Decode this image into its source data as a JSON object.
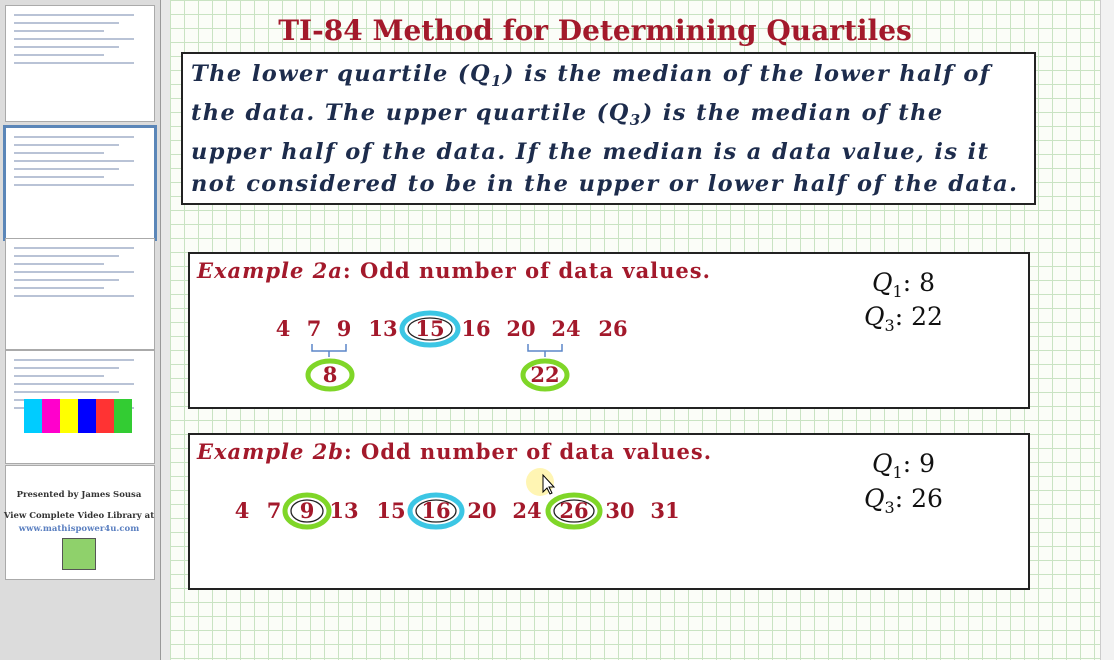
{
  "title": "TI-84 Method for Determining Quartiles",
  "definition": [
    "The lower quartile (Q",
    "1",
    ") is the median of the lower half of the data.  The upper quartile (Q",
    "3",
    ") is the median of the upper half of the data.  If the median is a data value, is it not considered to be in the upper or lower half of the data."
  ],
  "examples": [
    {
      "label": "Example 2a",
      "description": ":  Odd number of data values.",
      "data": [
        4,
        7,
        9,
        13,
        15,
        16,
        20,
        24,
        26
      ],
      "half_medians": [
        8,
        22
      ],
      "q1": {
        "symbol": "Q",
        "sub": "1",
        "sep": ":",
        "value": 8
      },
      "q3": {
        "symbol": "Q",
        "sub": "3",
        "sep": ":",
        "value": 22
      }
    },
    {
      "label": "Example 2b",
      "description": ":  Odd number of data values.",
      "data": [
        4,
        7,
        9,
        13,
        15,
        16,
        20,
        24,
        26,
        30,
        31
      ],
      "q1": {
        "symbol": "Q",
        "sub": "1",
        "sep": ":",
        "value": 9
      },
      "q3": {
        "symbol": "Q",
        "sub": "3",
        "sep": ":",
        "value": 26
      }
    }
  ],
  "sidebar": {
    "presenter": "Presented by James Sousa",
    "library": "View Complete Video Library at",
    "url": "www.mathispower4u.com"
  }
}
